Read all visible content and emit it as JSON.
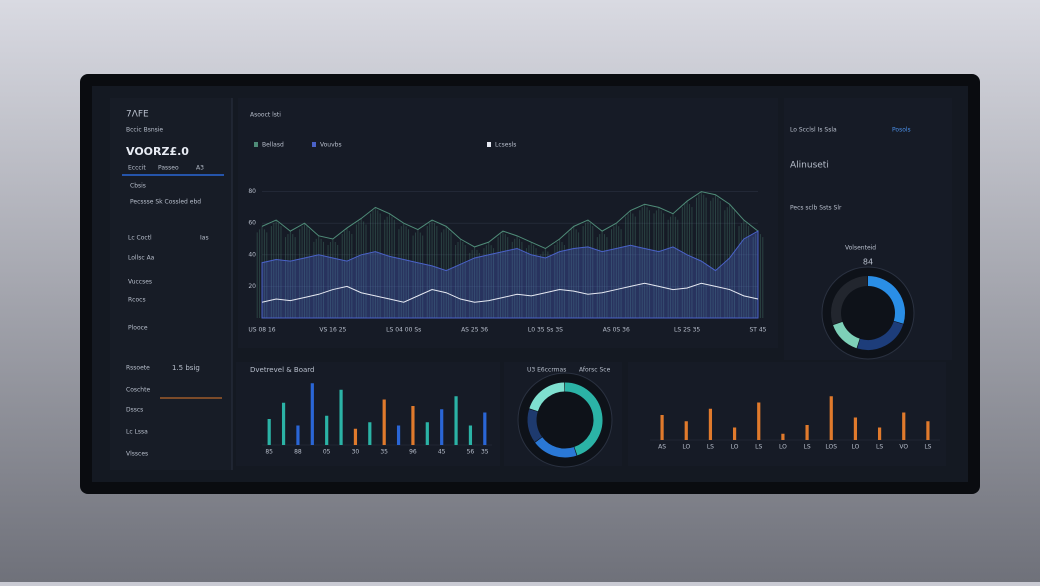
{
  "sidebar": {
    "logo": "7ΛFE",
    "subtitle": "Bccic Bsnsie",
    "brand": "VOORZ£.0",
    "tabs": [
      "Ecccit",
      "Passeo",
      "A3"
    ],
    "items": [
      "Cbsis",
      "Pecssse Sk Cossled ebd",
      "Lc Coctl",
      "Ias",
      "Lollsc Aa",
      "Vuccses",
      "Rcocs",
      "Plooce"
    ],
    "stats_title": "Rssoete",
    "stats_value": "1.5 bsig",
    "rows": [
      "Coschte",
      "Dsscs",
      "Lc Lssa",
      "Vlssces"
    ]
  },
  "main_header": "Asooct lsti",
  "right_panel": {
    "title": "Alinuseti",
    "tag": "Posols",
    "lines": [
      "Lo Scclsl Is Ssla",
      "Pecs sclb Ssts Slr"
    ],
    "center_value": "84"
  },
  "chart_data": [
    {
      "type": "line",
      "ylim": [
        0,
        100
      ],
      "yticks": [
        20,
        40,
        60,
        80
      ],
      "grid": true,
      "categories": [
        "US 08 16",
        null,
        null,
        null,
        null,
        "VS 16 25",
        null,
        null,
        null,
        null,
        "LS 04 00 Ss",
        null,
        null,
        null,
        null,
        "AS 25 36",
        null,
        null,
        null,
        null,
        "L0 35 Ss 3S",
        null,
        null,
        null,
        null,
        "AS 0S 36",
        null,
        null,
        null,
        null,
        "LS 2S 35",
        null,
        null,
        null,
        null,
        "ST 45"
      ],
      "series": [
        {
          "name": "Bellasd",
          "style": "spikes",
          "color": "#4f8c78",
          "values": [
            58,
            62,
            55,
            60,
            52,
            50,
            57,
            63,
            70,
            66,
            60,
            56,
            62,
            58,
            50,
            45,
            48,
            55,
            52,
            48,
            44,
            50,
            58,
            62,
            55,
            60,
            68,
            72,
            70,
            66,
            74,
            80,
            78,
            72,
            62,
            55
          ]
        },
        {
          "name": "Vouvbs",
          "style": "area",
          "color": "#4a62c8",
          "values": [
            35,
            37,
            36,
            38,
            40,
            38,
            36,
            40,
            42,
            39,
            37,
            35,
            33,
            30,
            34,
            38,
            40,
            42,
            44,
            40,
            38,
            42,
            44,
            45,
            42,
            44,
            46,
            44,
            42,
            45,
            40,
            36,
            30,
            38,
            50,
            55
          ]
        },
        {
          "name": "Lcsesls",
          "style": "line",
          "color": "#e6e9f2",
          "values": [
            10,
            12,
            11,
            13,
            15,
            18,
            20,
            16,
            14,
            12,
            10,
            14,
            18,
            16,
            12,
            10,
            11,
            13,
            15,
            14,
            16,
            18,
            17,
            15,
            16,
            18,
            20,
            22,
            20,
            18,
            19,
            22,
            20,
            18,
            14,
            12
          ]
        }
      ]
    },
    {
      "type": "bar",
      "title": "Dvetrevel & Board",
      "ylim": [
        0,
        100
      ],
      "categories": [
        "85",
        null,
        "88",
        null,
        "05",
        null,
        "30",
        null,
        "35",
        null,
        "96",
        null,
        "45",
        null,
        "56",
        "35"
      ],
      "values": [
        40,
        65,
        30,
        95,
        45,
        85,
        25,
        35,
        70,
        30,
        60,
        35,
        55,
        75,
        30,
        50
      ],
      "colors": [
        "#2bb3a6",
        "#2bb3a6",
        "#2a66d6",
        "#2a66d6",
        "#2bb3a6",
        "#2bb3a6",
        "#e07a2c",
        "#2bb3a6",
        "#e07a2c",
        "#2a66d6",
        "#e07a2c",
        "#2bb3a6",
        "#2a66d6",
        "#2bb3a6",
        "#2bb3a6",
        "#2a66d6"
      ]
    },
    {
      "type": "donut",
      "title": "U3 E6ccrmas",
      "tag": "Aforsc Sce",
      "values": [
        45,
        20,
        15,
        20
      ],
      "colors": [
        "#2bb3a6",
        "#2a78d6",
        "#1e3a6e",
        "#7fe0d0"
      ]
    },
    {
      "type": "donut",
      "title": "Volsenteid",
      "values": [
        30,
        25,
        15,
        30
      ],
      "colors": [
        "#2a8ee6",
        "#1d3d7a",
        "#7ed0b8",
        "#22262e"
      ]
    },
    {
      "type": "bar",
      "ylim": [
        0,
        40
      ],
      "categories": [
        "AS",
        "LO",
        "LS",
        "LO",
        "LS",
        "LO",
        "LS",
        "LOS",
        "LO",
        "LS",
        "VO",
        "LS"
      ],
      "values": [
        20,
        15,
        25,
        10,
        30,
        5,
        12,
        35,
        18,
        10,
        22,
        15
      ],
      "colors": [
        "#e07a2c",
        "#e07a2c",
        "#e07a2c",
        "#e07a2c",
        "#e07a2c",
        "#e07a2c",
        "#e07a2c",
        "#e07a2c",
        "#e07a2c",
        "#e07a2c",
        "#e07a2c",
        "#e07a2c"
      ]
    }
  ]
}
